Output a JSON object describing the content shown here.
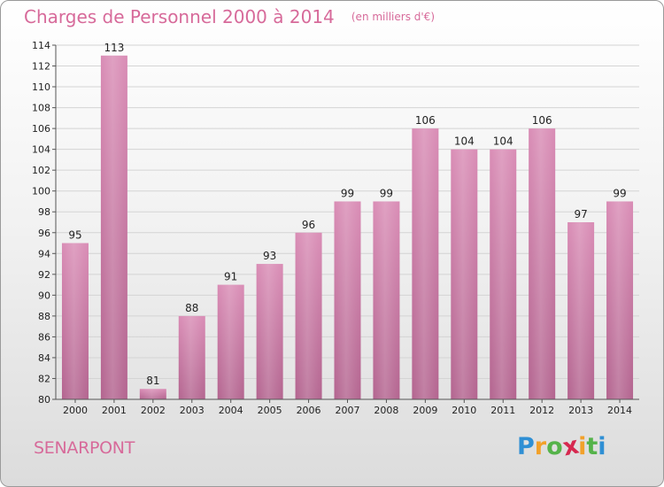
{
  "chart_data": {
    "type": "bar",
    "title": "Charges de Personnel 2000 à 2014",
    "subtitle": "(en milliers d'€)",
    "xlabel": "",
    "ylabel": "",
    "categories": [
      "2000",
      "2001",
      "2002",
      "2003",
      "2004",
      "2005",
      "2006",
      "2007",
      "2008",
      "2009",
      "2010",
      "2011",
      "2012",
      "2013",
      "2014"
    ],
    "values": [
      95,
      113,
      81,
      88,
      91,
      93,
      96,
      99,
      99,
      106,
      104,
      104,
      106,
      97,
      99
    ],
    "ylim": [
      80,
      114
    ],
    "ytick_step": 2,
    "grid": true,
    "legend": "none",
    "bar_color": "#d98cb5",
    "bar_color_dark": "#b3648f"
  },
  "footer": {
    "commune": "SENARPONT"
  },
  "logo": {
    "letters": [
      "P",
      "r",
      "o",
      "x",
      "i",
      "t",
      "i"
    ],
    "colors": [
      "#2f8fd4",
      "#f2a12a",
      "#55b34a",
      "#d6284f",
      "#f2a12a",
      "#55b34a",
      "#2f8fd4"
    ]
  }
}
